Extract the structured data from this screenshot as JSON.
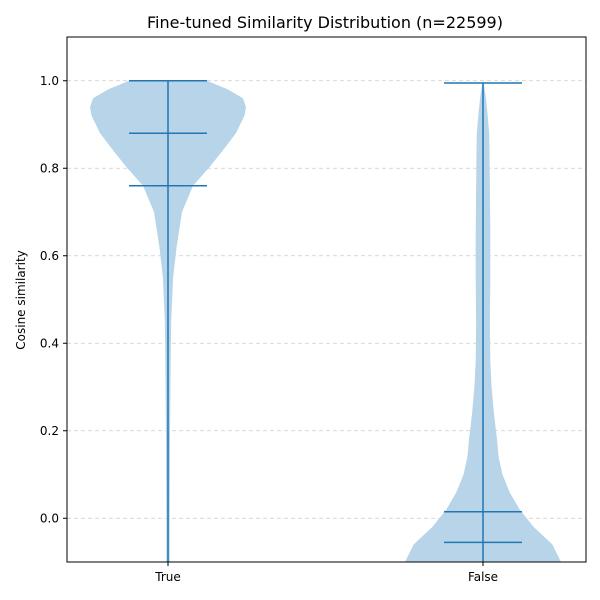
{
  "chart_data": {
    "type": "violin",
    "title": "Fine-tuned Similarity Distribution (n=22599)",
    "xlabel": "",
    "ylabel": "Cosine similarity",
    "categories": [
      "True",
      "False"
    ],
    "ylim": [
      -0.1,
      1.1
    ],
    "yticks": [
      0.0,
      0.2,
      0.4,
      0.6,
      0.8,
      1.0
    ],
    "ytick_labels": [
      "0.0",
      "0.2",
      "0.4",
      "0.6",
      "0.8",
      "1.0"
    ],
    "grid": {
      "axis": "y",
      "style": "dashed"
    },
    "colors": {
      "body": "#b8d4e8",
      "line": "#1f77b4",
      "grid": "#cccccc",
      "axis": "#000000"
    },
    "violins": [
      {
        "category": "True",
        "min": -0.1,
        "max": 1.0,
        "median": 0.88,
        "quantiles": [
          0.76
        ],
        "density_profile": [
          [
            -0.1,
            0.022
          ],
          [
            0.0,
            0.022
          ],
          [
            0.2,
            0.027
          ],
          [
            0.35,
            0.033
          ],
          [
            0.45,
            0.041
          ],
          [
            0.55,
            0.065
          ],
          [
            0.62,
            0.11
          ],
          [
            0.7,
            0.18
          ],
          [
            0.76,
            0.32
          ],
          [
            0.8,
            0.52
          ],
          [
            0.84,
            0.7
          ],
          [
            0.88,
            0.87
          ],
          [
            0.92,
            0.98
          ],
          [
            0.94,
            1.0
          ],
          [
            0.96,
            0.96
          ],
          [
            0.98,
            0.77
          ],
          [
            1.0,
            0.5
          ]
        ]
      },
      {
        "category": "False",
        "min": -0.1,
        "max": 0.995,
        "median": 0.015,
        "quantiles": [
          -0.055
        ],
        "density_profile": [
          [
            -0.1,
            1.0
          ],
          [
            -0.06,
            0.89
          ],
          [
            -0.02,
            0.65
          ],
          [
            0.02,
            0.47
          ],
          [
            0.06,
            0.34
          ],
          [
            0.1,
            0.25
          ],
          [
            0.14,
            0.2
          ],
          [
            0.18,
            0.18
          ],
          [
            0.24,
            0.14
          ],
          [
            0.3,
            0.11
          ],
          [
            0.36,
            0.093
          ],
          [
            0.44,
            0.088
          ],
          [
            0.55,
            0.093
          ],
          [
            0.65,
            0.093
          ],
          [
            0.75,
            0.088
          ],
          [
            0.84,
            0.083
          ],
          [
            0.88,
            0.08
          ],
          [
            0.93,
            0.055
          ],
          [
            0.97,
            0.031
          ],
          [
            0.995,
            0.006
          ]
        ]
      }
    ]
  }
}
